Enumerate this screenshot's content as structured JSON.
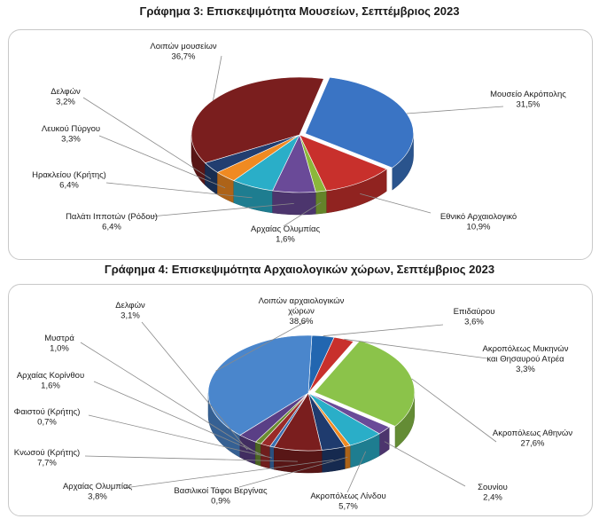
{
  "chart_data": [
    {
      "type": "pie",
      "title": "Γράφημα 3: Επισκεψιμότητα Μουσείων, Σεπτέμβριος 2023",
      "categories": [
        "Μουσείο Ακρόπολης",
        "Εθνικό Αρχαιολογικό",
        "Αρχαίας Ολυμπίας",
        "Παλάτι Ιπποτών (Ρόδου)",
        "Ηρακλείου (Κρήτης)",
        "Λευκού Πύργου",
        "Δελφών",
        "Λοιπών μουσείων"
      ],
      "values": [
        31.5,
        10.9,
        1.6,
        6.4,
        6.4,
        3.3,
        3.2,
        36.7
      ],
      "value_labels": [
        "31,5%",
        "10,9%",
        "1,6%",
        "6,4%",
        "6,4%",
        "3,3%",
        "3,2%",
        "36,7%"
      ],
      "colors": [
        "#3a74c4",
        "#c8302c",
        "#8bb83a",
        "#6a4a98",
        "#2aaec8",
        "#f08a22",
        "#223e70",
        "#7a1e1e"
      ],
      "explode_index": 0
    },
    {
      "type": "pie",
      "title": "Γράφημα 4: Επισκεψιμότητα Αρχαιολογικών χώρων, Σεπτέμβριος 2023",
      "categories": [
        "Επιδαύρου",
        "Ακροπόλεως Μυκηνών και Θησαυρού Ατρέα",
        "Ακροπόλεως Αθηνών",
        "Σουνίου",
        "Ακροπόλεως Λίνδου",
        "Βασιλικοί Τάφοι Βεργίνας",
        "Αρχαίας Ολυμπίας",
        "Κνωσού (Κρήτης)",
        "Φαιστού (Κρήτης)",
        "Αρχαίας Κορίνθου",
        "Μυστρά",
        "Δελφών",
        "Λοιπών αρχαιολογικών χώρων"
      ],
      "values": [
        3.6,
        3.3,
        27.6,
        2.4,
        5.7,
        0.9,
        3.8,
        7.7,
        0.7,
        1.6,
        1.0,
        3.1,
        38.6
      ],
      "value_labels": [
        "3,6%",
        "3,3%",
        "27,6%",
        "2,4%",
        "5,7%",
        "0,9%",
        "3,8%",
        "7,7%",
        "0,7%",
        "1,6%",
        "1,0%",
        "3,1%",
        "38,6%"
      ],
      "colors": [
        "#2266b0",
        "#c8302c",
        "#8bc34a",
        "#6a4a98",
        "#2aaec8",
        "#f08a22",
        "#1f3b6e",
        "#7a1e1e",
        "#3a6fb0",
        "#9a2a28",
        "#6a8c30",
        "#5a3f86",
        "#4a86cc"
      ],
      "explode_index": 2
    }
  ]
}
